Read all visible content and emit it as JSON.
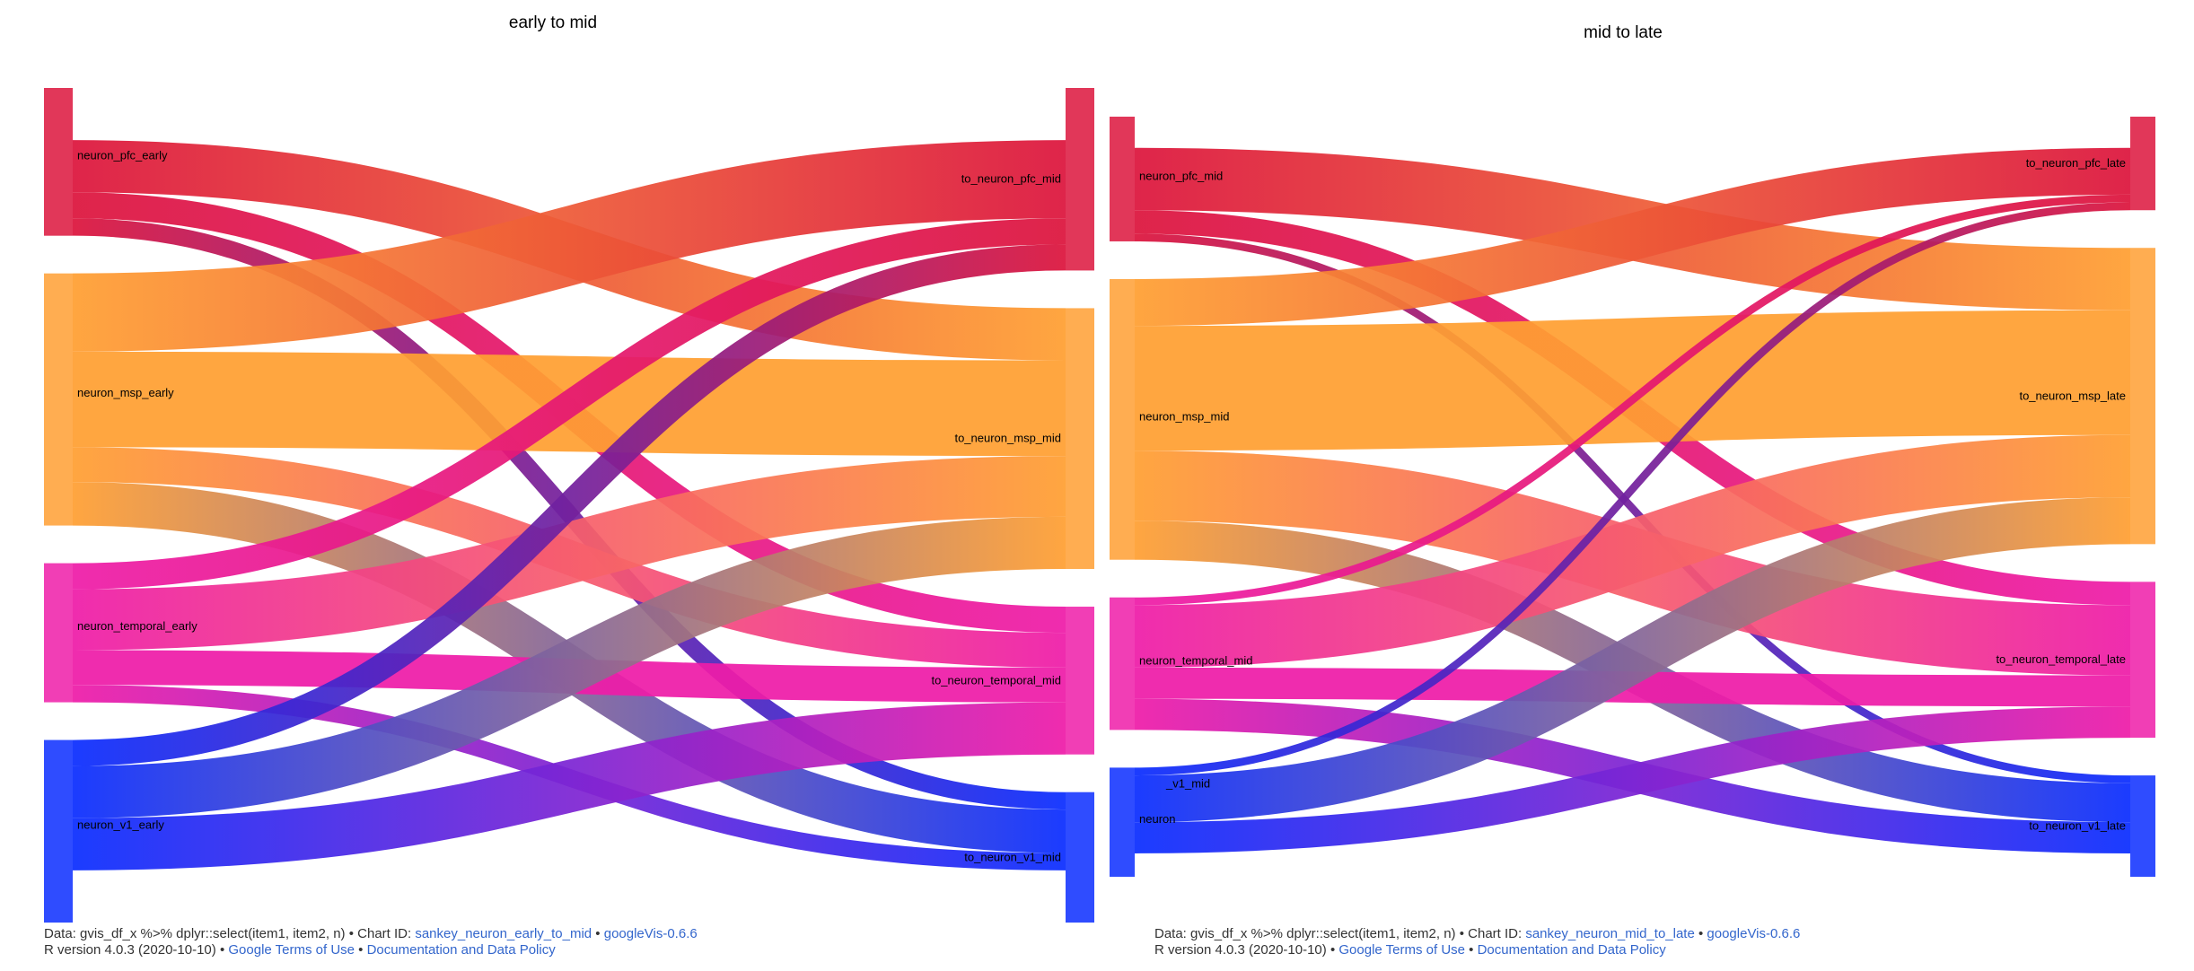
{
  "panels": [
    {
      "id": "early_to_mid",
      "title": "early to mid",
      "left_nodes": [
        {
          "id": "pfc",
          "label": "neuron_pfc_early",
          "color": "#dc143c"
        },
        {
          "id": "msp",
          "label": "neuron_msp_early",
          "color": "#ff9f32"
        },
        {
          "id": "temporal",
          "label": "neuron_temporal_early",
          "color": "#ee1ca8"
        },
        {
          "id": "v1",
          "label": "neuron_v1_early",
          "color": "#0a2dff"
        }
      ],
      "right_nodes": [
        {
          "id": "pfc",
          "label": "to_neuron_pfc_mid",
          "color": "#dc143c"
        },
        {
          "id": "msp",
          "label": "to_neuron_msp_mid",
          "color": "#ff9f32"
        },
        {
          "id": "temporal",
          "label": "to_neuron_temporal_mid",
          "color": "#ee1ca8"
        },
        {
          "id": "v1",
          "label": "to_neuron_v1_mid",
          "color": "#0a2dff"
        }
      ],
      "footer": {
        "data_label": "Data: gvis_df_x %>% dplyr::select(item1, item2, n)",
        "chart_id_label": "Chart ID:",
        "chart_id": "sankey_neuron_early_to_mid",
        "version_link": "googleVis-0.6.6",
        "r_version": "R version 4.0.3 (2020-10-10)",
        "terms_link": "Google Terms of Use",
        "policy_link": "Documentation and Data Policy"
      }
    },
    {
      "id": "mid_to_late",
      "title": "mid to late",
      "left_nodes": [
        {
          "id": "pfc",
          "label": "neuron_pfc_mid",
          "color": "#dc143c"
        },
        {
          "id": "msp",
          "label": "neuron_msp_mid",
          "color": "#ff9f32"
        },
        {
          "id": "temporal",
          "label": "neuron_temporal_mid",
          "color": "#ee1ca8"
        },
        {
          "id": "v1",
          "label": "neuron",
          "color": "#0a2dff"
        }
      ],
      "overlap_labels": [
        "_v1_mid"
      ],
      "right_nodes": [
        {
          "id": "pfc",
          "label": "to_neuron_pfc_late",
          "color": "#dc143c"
        },
        {
          "id": "msp",
          "label": "to_neuron_msp_late",
          "color": "#ff9f32"
        },
        {
          "id": "temporal",
          "label": "to_neuron_temporal_late",
          "color": "#ee1ca8"
        },
        {
          "id": "v1",
          "label": "to_neuron_v1_late",
          "color": "#0a2dff"
        }
      ],
      "footer": {
        "data_label": "Data: gvis_df_x %>% dplyr::select(item1, item2, n)",
        "chart_id_label": "Chart ID:",
        "chart_id": "sankey_neuron_mid_to_late",
        "version_link": "googleVis-0.6.6",
        "r_version": "R version 4.0.3 (2020-10-10)",
        "terms_link": "Google Terms of Use",
        "policy_link": "Documentation and Data Policy"
      }
    }
  ],
  "chart_data": [
    {
      "type": "sankey",
      "title": "early to mid",
      "links": [
        {
          "from": "neuron_pfc_early",
          "to": "to_neuron_pfc_mid",
          "value": 6
        },
        {
          "from": "neuron_pfc_early",
          "to": "to_neuron_msp_mid",
          "value": 6
        },
        {
          "from": "neuron_pfc_early",
          "to": "to_neuron_temporal_mid",
          "value": 3
        },
        {
          "from": "neuron_pfc_early",
          "to": "to_neuron_v1_mid",
          "value": 2
        },
        {
          "from": "neuron_msp_early",
          "to": "to_neuron_pfc_mid",
          "value": 9
        },
        {
          "from": "neuron_msp_early",
          "to": "to_neuron_msp_mid",
          "value": 11
        },
        {
          "from": "neuron_msp_early",
          "to": "to_neuron_temporal_mid",
          "value": 4
        },
        {
          "from": "neuron_msp_early",
          "to": "to_neuron_v1_mid",
          "value": 5
        },
        {
          "from": "neuron_temporal_early",
          "to": "to_neuron_pfc_mid",
          "value": 3
        },
        {
          "from": "neuron_temporal_early",
          "to": "to_neuron_msp_mid",
          "value": 7
        },
        {
          "from": "neuron_temporal_early",
          "to": "to_neuron_temporal_mid",
          "value": 4
        },
        {
          "from": "neuron_temporal_early",
          "to": "to_neuron_v1_mid",
          "value": 2
        },
        {
          "from": "neuron_v1_early",
          "to": "to_neuron_pfc_mid",
          "value": 3
        },
        {
          "from": "neuron_v1_early",
          "to": "to_neuron_msp_mid",
          "value": 6
        },
        {
          "from": "neuron_v1_early",
          "to": "to_neuron_temporal_mid",
          "value": 6
        },
        {
          "from": "neuron_v1_early",
          "to": "to_neuron_v1_mid",
          "value": 6
        }
      ]
    },
    {
      "type": "sankey",
      "title": "mid to late",
      "links": [
        {
          "from": "neuron_pfc_mid",
          "to": "to_neuron_pfc_late",
          "value": 4
        },
        {
          "from": "neuron_pfc_mid",
          "to": "to_neuron_msp_late",
          "value": 8
        },
        {
          "from": "neuron_pfc_mid",
          "to": "to_neuron_temporal_late",
          "value": 3
        },
        {
          "from": "neuron_pfc_mid",
          "to": "to_neuron_v1_late",
          "value": 1
        },
        {
          "from": "neuron_msp_mid",
          "to": "to_neuron_pfc_late",
          "value": 6
        },
        {
          "from": "neuron_msp_mid",
          "to": "to_neuron_msp_late",
          "value": 16
        },
        {
          "from": "neuron_msp_mid",
          "to": "to_neuron_temporal_late",
          "value": 9
        },
        {
          "from": "neuron_msp_mid",
          "to": "to_neuron_v1_late",
          "value": 5
        },
        {
          "from": "neuron_temporal_mid",
          "to": "to_neuron_pfc_late",
          "value": 1
        },
        {
          "from": "neuron_temporal_mid",
          "to": "to_neuron_msp_late",
          "value": 8
        },
        {
          "from": "neuron_temporal_mid",
          "to": "to_neuron_temporal_late",
          "value": 4
        },
        {
          "from": "neuron_temporal_mid",
          "to": "to_neuron_v1_late",
          "value": 4
        },
        {
          "from": "neuron_v1_mid",
          "to": "to_neuron_pfc_late",
          "value": 1
        },
        {
          "from": "neuron_v1_mid",
          "to": "to_neuron_msp_late",
          "value": 6
        },
        {
          "from": "neuron_v1_mid",
          "to": "to_neuron_temporal_late",
          "value": 4
        },
        {
          "from": "neuron_v1_mid",
          "to": "to_neuron_v1_late",
          "value": 3
        }
      ]
    }
  ]
}
